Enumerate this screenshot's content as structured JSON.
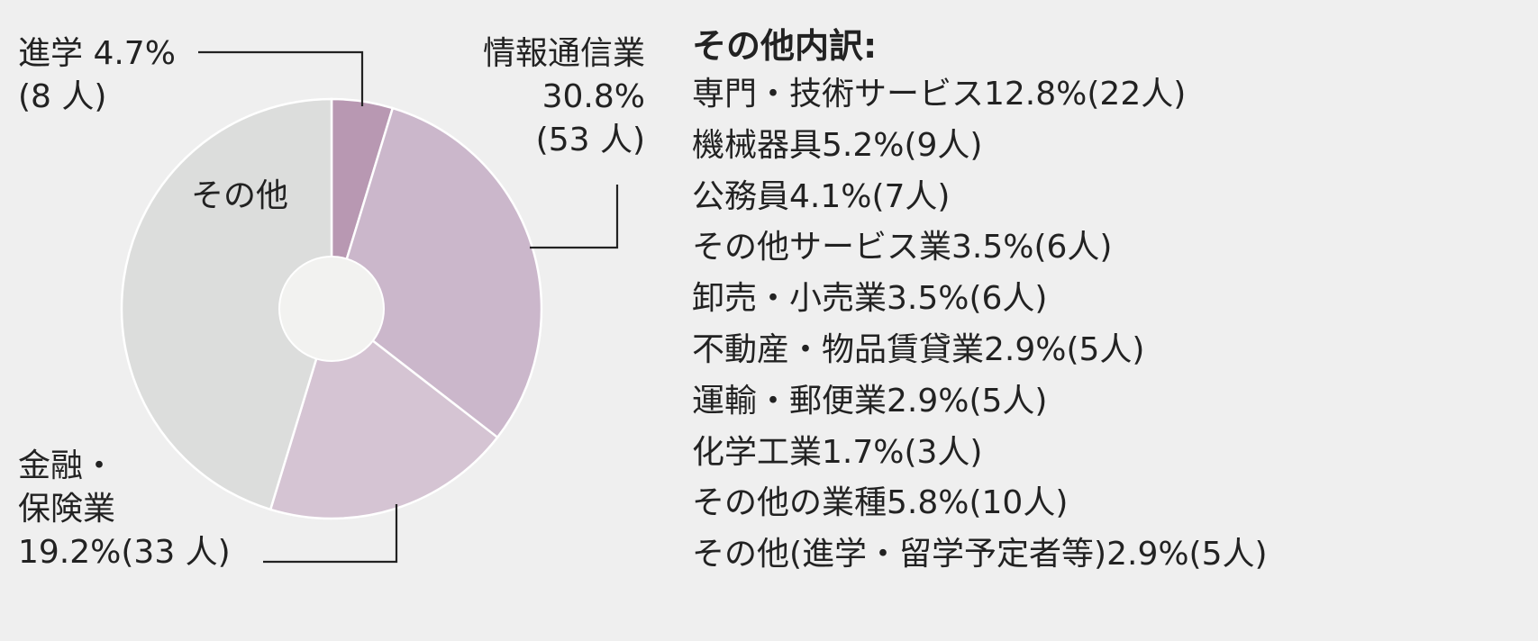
{
  "chart_data": {
    "type": "pie",
    "title": "",
    "slices": [
      {
        "label": "進学",
        "percent": 4.7,
        "count_label": "(8人)",
        "color": "#b898b2"
      },
      {
        "label": "情報通信業",
        "percent": 30.8,
        "count_label": "(53人)",
        "color": "#cbb7cb"
      },
      {
        "label": "金融・保険業",
        "percent": 19.2,
        "count_label": "(33人)",
        "color": "#d5c4d3"
      },
      {
        "label": "その他",
        "percent": 45.3,
        "count_label": "",
        "color": "#dcdddc"
      }
    ]
  },
  "labels": {
    "shingaku": {
      "line1": "進学 4.7%",
      "line2": "(8 人)"
    },
    "joho": {
      "line1": "情報通信業",
      "line2": "30.8%",
      "line3": "(53 人)"
    },
    "sonota": {
      "line1": "その他"
    },
    "kinyu": {
      "line1": "金融・",
      "line2": "保険業",
      "line3": "19.2%(33 人)"
    }
  },
  "breakdown": {
    "title": "その他内訳:",
    "items": [
      "専門・技術サービス12.8%(22人)",
      "機械器具5.2%(9人)",
      "公務員4.1%(7人)",
      "その他サービス業3.5%(6人)",
      "卸売・小売業3.5%(6人)",
      "不動産・物品賃貸業2.9%(5人)",
      "運輸・郵便業2.9%(5人)",
      "化学工業1.7%(3人)",
      "その他の業種5.8%(10人)",
      "その他(進学・留学予定者等)2.9%(5人)"
    ]
  }
}
